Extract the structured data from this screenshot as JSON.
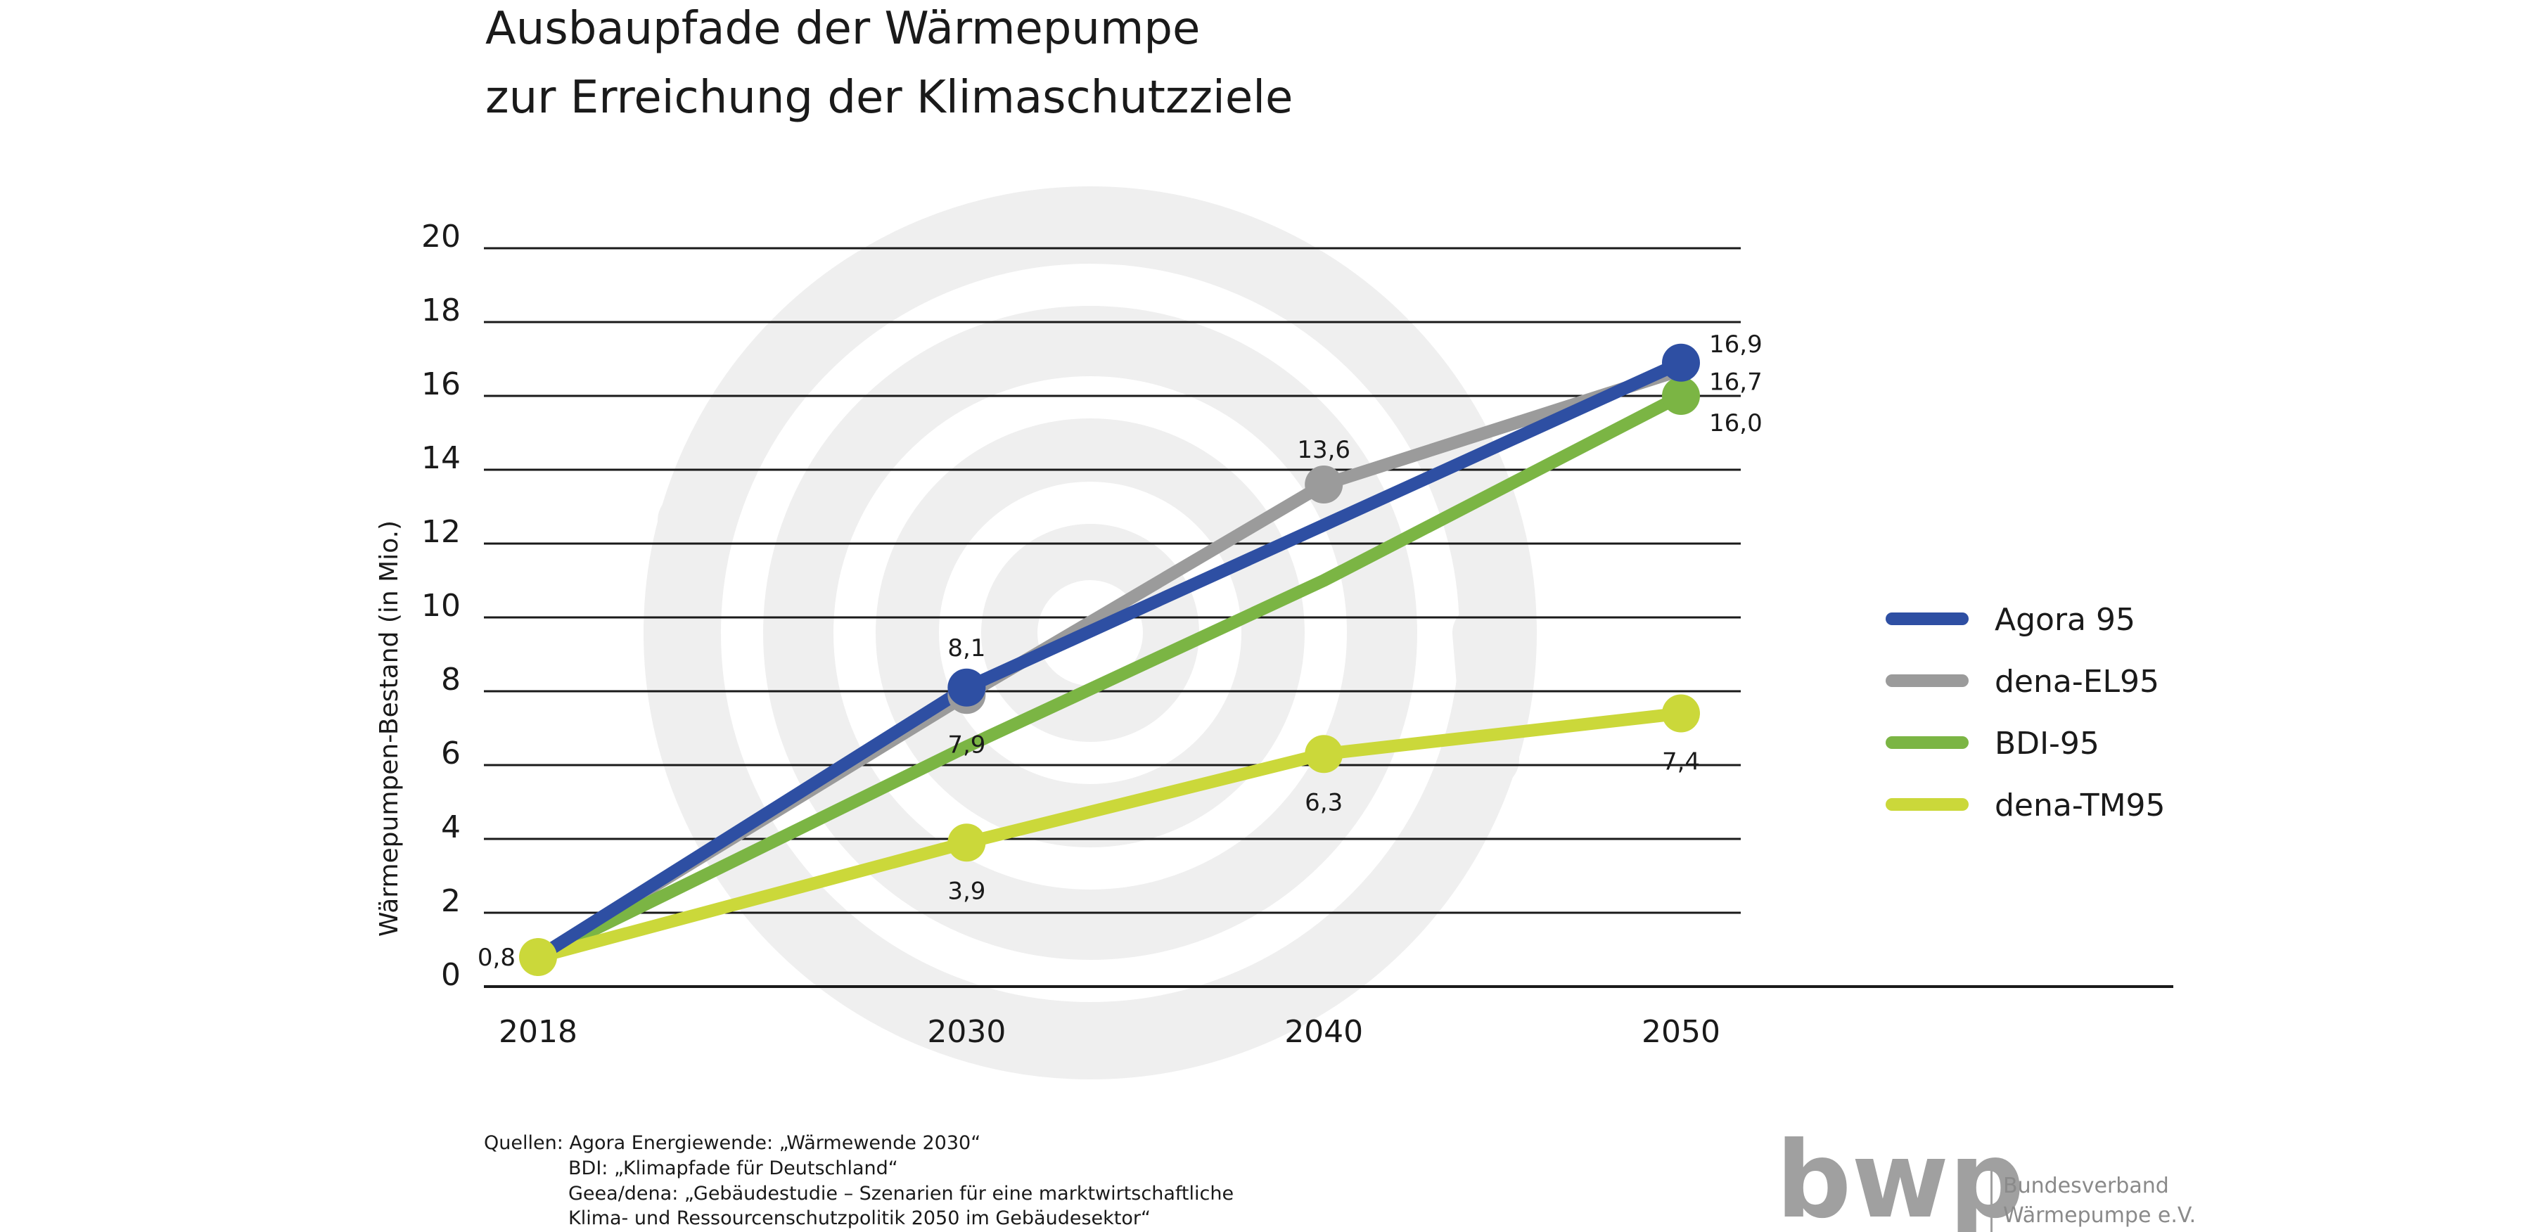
{
  "chart_data": {
    "type": "line",
    "title": [
      "Ausbaupfade der Wärmepumpe",
      "zur Erreichung der Klimaschutzziele"
    ],
    "xlabel": "",
    "ylabel": "Wärmepumpen-Bestand (in Mio.)",
    "x": [
      "2018",
      "2030",
      "2040",
      "2050"
    ],
    "x_numeric": [
      2018,
      2030,
      2040,
      2050
    ],
    "ylim": [
      0,
      20
    ],
    "yticks": [
      0,
      2,
      4,
      6,
      8,
      10,
      12,
      14,
      16,
      18,
      20
    ],
    "grid": true,
    "legend_position": "right",
    "series": [
      {
        "name": "dena-EL95",
        "color": "#9b9b9b",
        "values": [
          0.8,
          7.9,
          13.6,
          16.7
        ],
        "markers": [
          false,
          true,
          true,
          false
        ],
        "labels": [
          "",
          "7,9",
          "13,6",
          "16,7"
        ]
      },
      {
        "name": "BDI-95",
        "color": "#7bb544",
        "values": [
          0.8,
          6.5,
          11.0,
          16.0
        ],
        "markers": [
          false,
          false,
          false,
          true
        ],
        "labels": [
          "",
          "",
          "",
          "16,0"
        ]
      },
      {
        "name": "dena-TM95",
        "color": "#cbd83a",
        "values": [
          0.8,
          3.9,
          6.3,
          7.4
        ],
        "markers": [
          true,
          true,
          true,
          true
        ],
        "labels": [
          "0,8",
          "3,9",
          "6,3",
          "7,4"
        ]
      },
      {
        "name": "Agora 95",
        "color": "#2e4fa3",
        "values": [
          0.8,
          8.1,
          12.5,
          16.9
        ],
        "markers": [
          false,
          true,
          false,
          true
        ],
        "labels": [
          "",
          "8,1",
          "",
          "16,9"
        ]
      }
    ],
    "legend_order": [
      "Agora 95",
      "dena-EL95",
      "BDI-95",
      "dena-TM95"
    ]
  },
  "sources": [
    "Quellen: Agora Energiewende: „Wärmewende 2030“",
    "BDI: „Klimapfade für Deutschland“",
    "Geea/dena: „Gebäudestudie – Szenarien für eine marktwirtschaftliche",
    "Klima- und Ressourcenschutzpolitik 2050 im Gebäudesektor“"
  ],
  "logo": {
    "word": "bwp",
    "line1": "Bundesverband",
    "line2": "Wärmepumpe e.V."
  },
  "colors": {
    "watermark": "#efefef",
    "grid": "#1a1a1a",
    "logo": "#a0a0a0"
  }
}
